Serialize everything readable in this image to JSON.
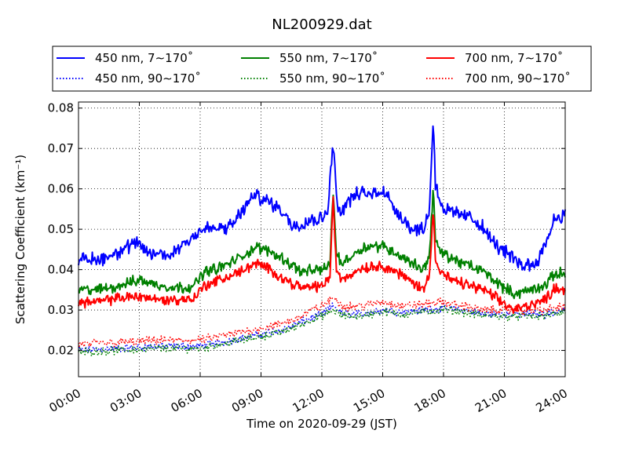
{
  "chart_data": {
    "type": "line",
    "title": "NL200929.dat",
    "xlabel": "Time on 2020-09-29 (JST)",
    "ylabel": "Scattering Coefficient (km⁻¹)",
    "x_ticks": [
      "00:00",
      "03:00",
      "06:00",
      "09:00",
      "12:00",
      "15:00",
      "18:00",
      "21:00",
      "24:00"
    ],
    "x_tick_hours": [
      0,
      3,
      6,
      9,
      12,
      15,
      18,
      21,
      24
    ],
    "xlim": [
      0,
      24
    ],
    "ylim": [
      0.0135,
      0.0815
    ],
    "y_ticks": [
      0.02,
      0.03,
      0.04,
      0.05,
      0.06,
      0.07,
      0.08
    ],
    "y_tick_labels": [
      "0.02",
      "0.03",
      "0.04",
      "0.05",
      "0.06",
      "0.07",
      "0.08"
    ],
    "grid": true,
    "legend_position": "top",
    "legend_columns": 3,
    "x_unit": "hours",
    "series": [
      {
        "name": "450 nm, 7∼170˚",
        "color": "#0000ff",
        "style": "solid",
        "noise": 0.0022,
        "x": [
          0,
          1,
          2,
          2.8,
          3.5,
          4.5,
          5.5,
          6.2,
          7.5,
          8,
          8.7,
          9.3,
          10,
          10.5,
          11,
          11.5,
          12,
          12.3,
          12.55,
          12.7,
          12.85,
          13,
          13.5,
          14,
          14.5,
          15,
          15.5,
          16,
          16.5,
          17,
          17.3,
          17.5,
          17.6,
          17.8,
          18,
          18.5,
          19,
          19.5,
          20,
          20.5,
          21,
          21.5,
          22,
          22.5,
          23,
          23.5,
          24
        ],
        "y": [
          0.0425,
          0.0425,
          0.0445,
          0.0465,
          0.044,
          0.0435,
          0.048,
          0.05,
          0.0505,
          0.054,
          0.0585,
          0.057,
          0.055,
          0.051,
          0.0515,
          0.0525,
          0.0525,
          0.0555,
          0.0715,
          0.06,
          0.054,
          0.055,
          0.058,
          0.059,
          0.0585,
          0.06,
          0.056,
          0.0525,
          0.05,
          0.05,
          0.0545,
          0.078,
          0.061,
          0.058,
          0.055,
          0.054,
          0.0535,
          0.0525,
          0.05,
          0.0465,
          0.0445,
          0.0425,
          0.041,
          0.0415,
          0.046,
          0.053,
          0.0535
        ]
      },
      {
        "name": "550 nm, 7∼170˚",
        "color": "#008000",
        "style": "solid",
        "noise": 0.0017,
        "x": [
          0,
          1,
          2,
          3,
          4,
          5,
          5.7,
          6.2,
          7,
          8,
          8.7,
          9.5,
          10,
          11,
          12,
          12.4,
          12.55,
          12.7,
          12.9,
          13.5,
          14,
          15,
          16,
          17,
          17.3,
          17.5,
          17.6,
          17.8,
          18.5,
          19,
          20,
          21,
          21.5,
          22,
          23,
          23.5,
          24
        ],
        "y": [
          0.035,
          0.035,
          0.036,
          0.0375,
          0.036,
          0.0355,
          0.036,
          0.0395,
          0.0405,
          0.043,
          0.0455,
          0.0445,
          0.043,
          0.0395,
          0.04,
          0.0415,
          0.06,
          0.045,
          0.0415,
          0.0435,
          0.0455,
          0.046,
          0.043,
          0.04,
          0.0435,
          0.0605,
          0.0475,
          0.0445,
          0.0425,
          0.0415,
          0.0395,
          0.0355,
          0.034,
          0.0345,
          0.036,
          0.039,
          0.039
        ]
      },
      {
        "name": "700 nm, 7∼170˚",
        "color": "#ff0000",
        "style": "solid",
        "noise": 0.0016,
        "x": [
          0,
          1,
          2,
          3,
          4,
          5,
          5.7,
          6.2,
          7,
          8,
          8.7,
          9.5,
          10,
          11,
          12,
          12.4,
          12.55,
          12.7,
          12.9,
          13.5,
          14,
          15,
          16,
          17,
          17.3,
          17.5,
          17.6,
          17.8,
          18.5,
          19,
          20,
          21,
          21.5,
          22,
          23,
          23.5,
          24
        ],
        "y": [
          0.032,
          0.032,
          0.033,
          0.0335,
          0.0325,
          0.0325,
          0.033,
          0.036,
          0.0375,
          0.0395,
          0.0415,
          0.04,
          0.038,
          0.0355,
          0.036,
          0.038,
          0.0585,
          0.041,
          0.0375,
          0.039,
          0.0405,
          0.041,
          0.0385,
          0.035,
          0.039,
          0.0555,
          0.0425,
          0.0395,
          0.037,
          0.0365,
          0.035,
          0.0315,
          0.03,
          0.031,
          0.0325,
          0.0355,
          0.035
        ]
      },
      {
        "name": "450 nm, 90∼170˚",
        "color": "#0000ff",
        "style": "dotted",
        "noise": 0.0012,
        "x": [
          0,
          2,
          4,
          6,
          7,
          8,
          9,
          10,
          11,
          11.5,
          12,
          12.6,
          13,
          14,
          15,
          16,
          17,
          18,
          19,
          20,
          21,
          22,
          23,
          24
        ],
        "y": [
          0.02,
          0.0205,
          0.021,
          0.021,
          0.022,
          0.023,
          0.024,
          0.025,
          0.027,
          0.028,
          0.029,
          0.031,
          0.029,
          0.029,
          0.03,
          0.0295,
          0.03,
          0.0305,
          0.03,
          0.029,
          0.029,
          0.029,
          0.029,
          0.03
        ]
      },
      {
        "name": "550 nm, 90∼170˚",
        "color": "#008000",
        "style": "dotted",
        "noise": 0.0012,
        "x": [
          0,
          2,
          4,
          6,
          7,
          8,
          9,
          10,
          11,
          11.5,
          12,
          12.6,
          13,
          14,
          15,
          16,
          17,
          18,
          19,
          20,
          21,
          22,
          23,
          24
        ],
        "y": [
          0.0195,
          0.02,
          0.0205,
          0.0205,
          0.0215,
          0.0225,
          0.0235,
          0.0245,
          0.0265,
          0.0275,
          0.0285,
          0.03,
          0.0285,
          0.0285,
          0.0295,
          0.029,
          0.0295,
          0.03,
          0.0295,
          0.0285,
          0.0285,
          0.0285,
          0.0285,
          0.0295
        ]
      },
      {
        "name": "700 nm, 90∼170˚",
        "color": "#ff0000",
        "style": "dotted",
        "noise": 0.0013,
        "x": [
          0,
          2,
          4,
          6,
          7,
          8,
          9,
          10,
          11,
          11.5,
          12,
          12.6,
          13,
          14,
          15,
          16,
          17,
          18,
          19,
          20,
          21,
          22,
          23,
          24
        ],
        "y": [
          0.0215,
          0.022,
          0.0225,
          0.0225,
          0.0235,
          0.0245,
          0.0255,
          0.0265,
          0.0285,
          0.03,
          0.031,
          0.033,
          0.031,
          0.031,
          0.032,
          0.031,
          0.0315,
          0.032,
          0.031,
          0.03,
          0.03,
          0.03,
          0.03,
          0.031
        ]
      }
    ],
    "legend_order": [
      0,
      1,
      2,
      3,
      4,
      5
    ]
  }
}
